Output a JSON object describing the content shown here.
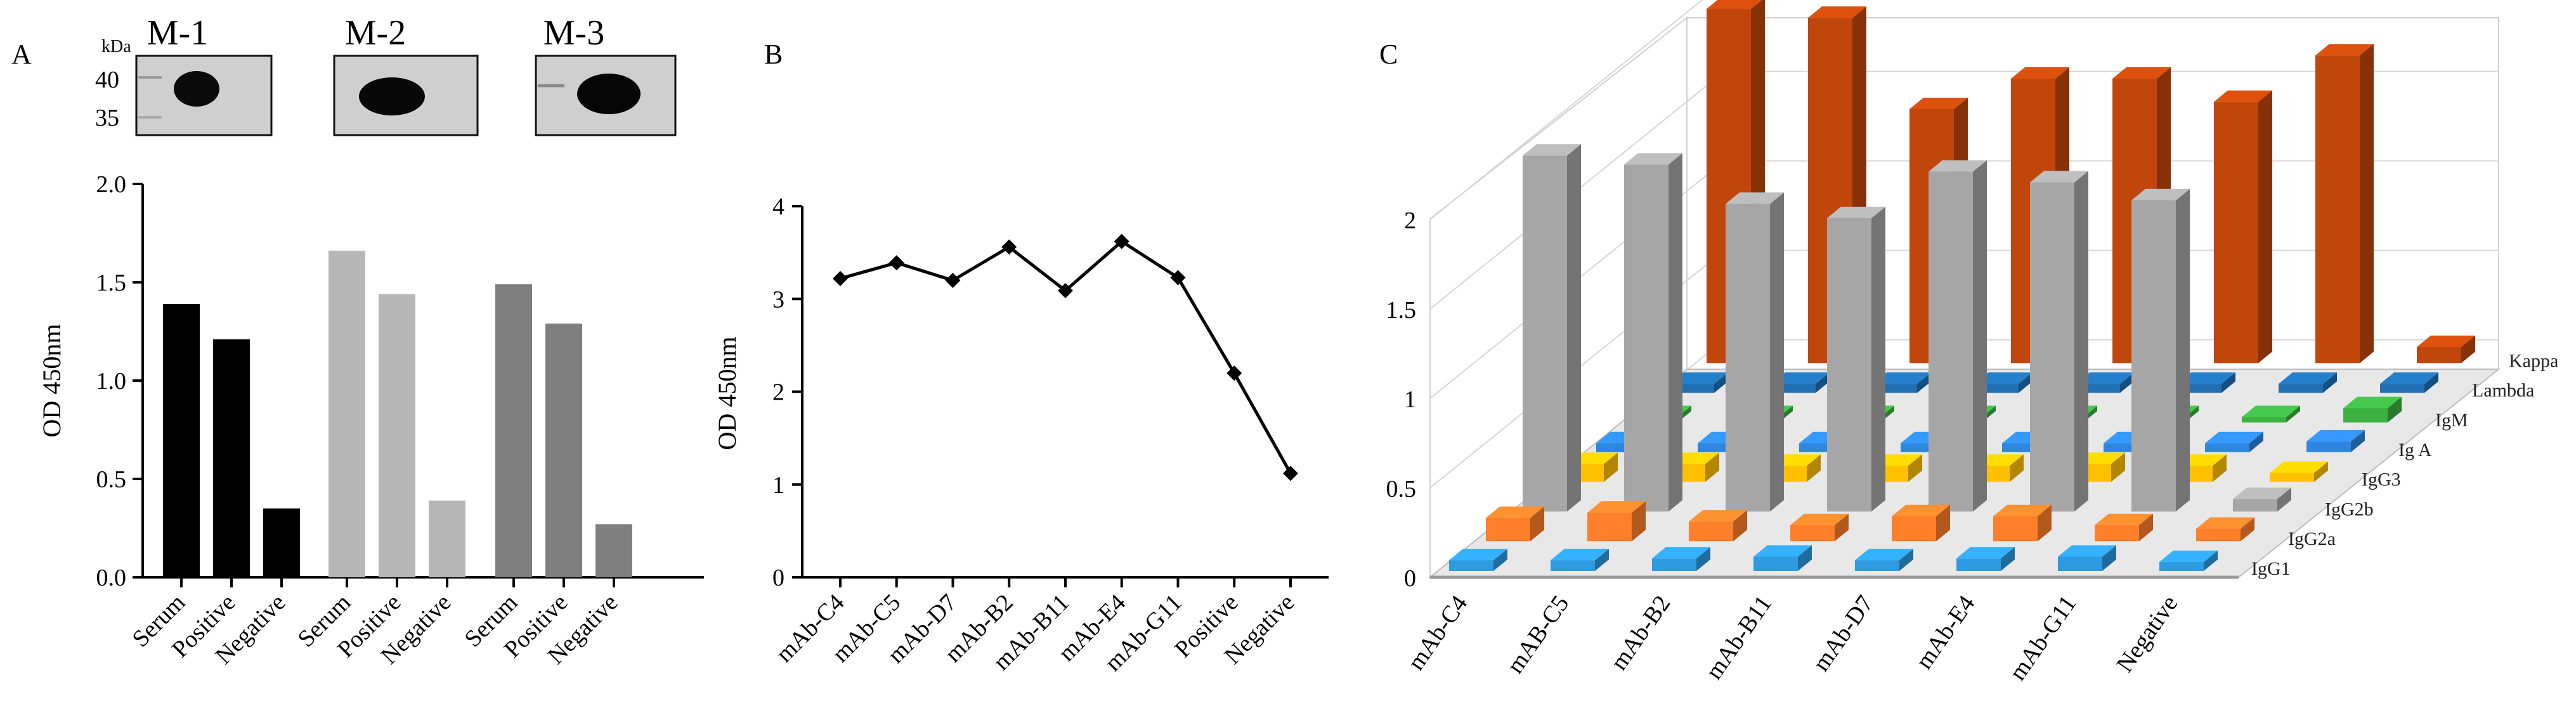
{
  "panels": {
    "a": "A",
    "b": "B",
    "c": "C"
  },
  "blots": {
    "kda_label": "kDa",
    "markers": [
      "40",
      "35"
    ],
    "titles": [
      "M-1",
      "M-2",
      "M-3"
    ]
  },
  "chart_data": [
    {
      "type": "bar",
      "id": "A",
      "ylabel": "OD 450nm",
      "ylim": [
        0,
        2.0
      ],
      "yticks": [
        "0.0",
        "0.5",
        "1.0",
        "1.5",
        "2.0"
      ],
      "groups": [
        {
          "name": "M-1",
          "color": "#000000",
          "categories": [
            "Serum",
            "Positive",
            "Negative"
          ],
          "values": [
            1.39,
            1.21,
            0.35
          ]
        },
        {
          "name": "M-2",
          "color": "#b7b7b7",
          "categories": [
            "Serum",
            "Positive",
            "Negative"
          ],
          "values": [
            1.66,
            1.44,
            0.39
          ]
        },
        {
          "name": "M-3",
          "color": "#7f7f7f",
          "categories": [
            "Serum",
            "Positive",
            "Negative"
          ],
          "values": [
            1.49,
            1.29,
            0.27
          ]
        }
      ]
    },
    {
      "type": "line",
      "id": "B",
      "ylabel": "OD 450nm",
      "ylim": [
        0,
        4
      ],
      "yticks": [
        "0",
        "1",
        "2",
        "3",
        "4"
      ],
      "categories": [
        "mAb-C4",
        "mAb-C5",
        "mAb-D7",
        "mAb-B2",
        "mAb-B11",
        "mAb-E4",
        "mAb-G11",
        "Positive",
        "Negative"
      ],
      "values": [
        3.22,
        3.39,
        3.2,
        3.56,
        3.09,
        3.62,
        3.23,
        2.2,
        1.12
      ]
    },
    {
      "type": "bar3d",
      "id": "C",
      "zlim": [
        0,
        2
      ],
      "zticks": [
        "0",
        "0.5",
        "1",
        "1.5",
        "2"
      ],
      "categories": [
        "mAb-C4",
        "mAB-C5",
        "mAb-B2",
        "mAb-B11",
        "mAb-D7",
        "mAb-E4",
        "mAb-G11",
        "Negative"
      ],
      "series": [
        {
          "name": "IgG1",
          "color": "#2e9be0",
          "values": [
            0.06,
            0.06,
            0.07,
            0.08,
            0.06,
            0.07,
            0.08,
            0.05
          ]
        },
        {
          "name": "IgG2a",
          "color": "#ff7f2a",
          "values": [
            0.13,
            0.16,
            0.11,
            0.09,
            0.14,
            0.14,
            0.09,
            0.07
          ]
        },
        {
          "name": "IgG2b",
          "color": "#a6a6a6",
          "values": [
            1.99,
            1.94,
            1.72,
            1.64,
            1.9,
            1.84,
            1.74,
            0.07
          ]
        },
        {
          "name": "IgG3",
          "color": "#ffc000",
          "values": [
            0.1,
            0.1,
            0.09,
            0.09,
            0.09,
            0.1,
            0.09,
            0.05
          ]
        },
        {
          "name": "Ig A",
          "color": "#2e86de",
          "values": [
            0.05,
            0.05,
            0.05,
            0.05,
            0.05,
            0.05,
            0.05,
            0.06
          ]
        },
        {
          "name": "IgM",
          "color": "#3cb043",
          "values": [
            0.03,
            0.03,
            0.03,
            0.03,
            0.03,
            0.03,
            0.03,
            0.08
          ]
        },
        {
          "name": "Lambda",
          "color": "#1f6fb2",
          "values": [
            0.05,
            0.05,
            0.05,
            0.05,
            0.05,
            0.05,
            0.05,
            0.05
          ]
        },
        {
          "name": "Kappa",
          "color": "#c0460b",
          "values": [
            1.98,
            1.93,
            1.42,
            1.59,
            1.59,
            1.46,
            1.72,
            0.09
          ]
        }
      ]
    }
  ]
}
